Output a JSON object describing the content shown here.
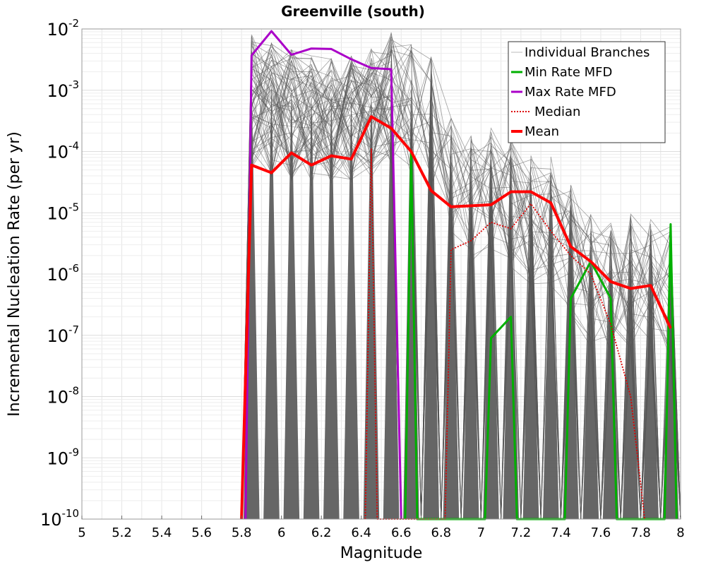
{
  "chart_data": {
    "type": "line",
    "title": "Greenville (south)",
    "xlabel": "Magnitude",
    "ylabel": "Incremental Nucleation Rate (per yr)",
    "xlim": [
      5,
      8
    ],
    "ylim": [
      1e-10,
      0.01
    ],
    "y_scale": "log",
    "grid": true,
    "legend_position": "top-right",
    "x_ticks": [
      "5",
      "5.2",
      "5.4",
      "5.6",
      "5.8",
      "6",
      "6.2",
      "6.4",
      "6.6",
      "6.8",
      "7",
      "7.2",
      "7.4",
      "7.6",
      "7.8",
      "8"
    ],
    "y_ticks": [
      {
        "base": "10",
        "exp": "-10",
        "value": 1e-10
      },
      {
        "base": "10",
        "exp": "-9",
        "value": 1e-09
      },
      {
        "base": "10",
        "exp": "-8",
        "value": 1e-08
      },
      {
        "base": "10",
        "exp": "-7",
        "value": 1e-07
      },
      {
        "base": "10",
        "exp": "-6",
        "value": 1e-06
      },
      {
        "base": "10",
        "exp": "-5",
        "value": 1e-05
      },
      {
        "base": "10",
        "exp": "-4",
        "value": 0.0001
      },
      {
        "base": "10",
        "exp": "-3",
        "value": 0.001
      },
      {
        "base": "10",
        "exp": "-2",
        "value": 0.01
      }
    ],
    "series": [
      {
        "name": "Individual Branches",
        "color": "#555555",
        "style": "thin",
        "note_branches": "many overlapping branch curves",
        "x": [
          5.75,
          5.85,
          5.95,
          6.05,
          6.15,
          6.25,
          6.35,
          6.45,
          6.55,
          6.65,
          6.75,
          6.85,
          6.95,
          7.05,
          7.15,
          7.25,
          7.35,
          7.45,
          7.55,
          7.65,
          7.75,
          7.85,
          7.95,
          8.0
        ],
        "upper": [
          1e-10,
          0.0085,
          0.006,
          0.005,
          0.004,
          0.004,
          0.004,
          0.005,
          0.009,
          0.006,
          0.004,
          0.0004,
          0.0002,
          0.0003,
          0.0002,
          0.0001,
          0.0001,
          3e-05,
          1e-05,
          8e-06,
          1e-05,
          1e-05,
          6e-06,
          5e-06
        ]
      },
      {
        "name": "Min Rate MFD",
        "color": "#00b000",
        "style": "solid",
        "x": [
          6.62,
          6.65,
          6.68,
          7.02,
          7.05,
          7.15,
          7.18,
          7.42,
          7.45,
          7.55,
          7.65,
          7.68,
          7.92,
          7.95,
          7.98
        ],
        "y": [
          1e-10,
          0.0001,
          1e-10,
          1e-10,
          9e-08,
          2e-07,
          1e-10,
          1e-10,
          4e-07,
          1.6e-06,
          4e-07,
          1e-10,
          1e-10,
          6.5e-06,
          1e-10
        ]
      },
      {
        "name": "Max Rate MFD",
        "color": "#aa00c8",
        "style": "solid",
        "x": [
          5.82,
          5.85,
          5.95,
          6.05,
          6.15,
          6.25,
          6.35,
          6.45,
          6.55,
          6.6
        ],
        "y": [
          1e-10,
          0.0037,
          0.0092,
          0.0038,
          0.0048,
          0.0047,
          0.0032,
          0.0023,
          0.0022,
          1e-10
        ]
      },
      {
        "name": "Median",
        "color": "#dd0000",
        "style": "dotted",
        "x": [
          6.42,
          6.45,
          6.48,
          6.82,
          6.85,
          6.95,
          7.05,
          7.15,
          7.25,
          7.35,
          7.45,
          7.55,
          7.65,
          7.75,
          7.82
        ],
        "y": [
          1e-10,
          0.00011,
          1e-10,
          1e-10,
          2.5e-06,
          3.5e-06,
          7e-06,
          5.5e-06,
          1.4e-05,
          5e-06,
          2e-06,
          1e-06,
          1.5e-07,
          1e-08,
          1e-10
        ]
      },
      {
        "name": "Mean",
        "color": "#ff0000",
        "style": "thick",
        "x": [
          5.8,
          5.85,
          5.95,
          6.05,
          6.15,
          6.25,
          6.35,
          6.45,
          6.55,
          6.65,
          6.75,
          6.85,
          6.95,
          7.05,
          7.15,
          7.25,
          7.35,
          7.45,
          7.55,
          7.65,
          7.75,
          7.85,
          7.95
        ],
        "y": [
          1e-10,
          6e-05,
          4.5e-05,
          9.5e-05,
          6e-05,
          8.5e-05,
          7.5e-05,
          0.00037,
          0.00024,
          0.0001,
          2.3e-05,
          1.25e-05,
          1.3e-05,
          1.35e-05,
          2.2e-05,
          2.2e-05,
          1.45e-05,
          2.8e-06,
          1.6e-06,
          7.5e-07,
          5.8e-07,
          6.5e-07,
          1.3e-07
        ]
      }
    ],
    "legend": [
      {
        "label": "Individual Branches",
        "color": "#bbbbbb",
        "style": "thin"
      },
      {
        "label": "Min Rate MFD",
        "color": "#00b000",
        "style": "solid"
      },
      {
        "label": "Max Rate MFD",
        "color": "#aa00c8",
        "style": "solid"
      },
      {
        "label": "Median",
        "color": "#dd0000",
        "style": "dotted"
      },
      {
        "label": "Mean",
        "color": "#ff0000",
        "style": "thick"
      }
    ]
  }
}
